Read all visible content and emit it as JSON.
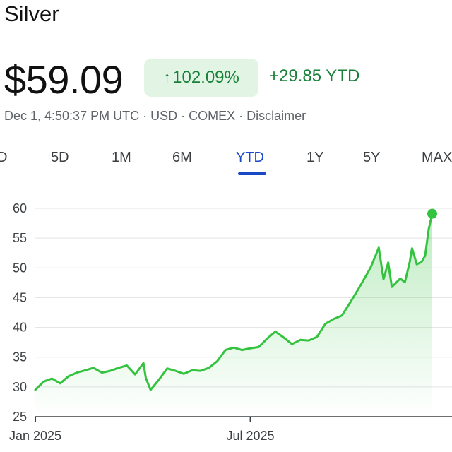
{
  "header": {
    "title": "Silver"
  },
  "quote": {
    "price": "$59.09",
    "change_arrow": "↑",
    "change_percent": "102.09%",
    "change_abs": "+29.85 YTD",
    "meta": "Dec 1, 4:50:37 PM UTC · USD · COMEX · Disclaimer"
  },
  "range_tabs": {
    "items": [
      "D",
      "5D",
      "1M",
      "6M",
      "YTD",
      "1Y",
      "5Y",
      "MAX"
    ],
    "selected": "YTD"
  },
  "colors": {
    "line": "#34c33f",
    "positive": "#188038",
    "accent": "#1a49c6"
  },
  "chart_data": {
    "type": "area",
    "title": "",
    "xlabel": "",
    "ylabel": "",
    "ylim": [
      25,
      60
    ],
    "y_ticks": [
      25,
      30,
      35,
      40,
      45,
      50,
      55,
      60
    ],
    "x_ticks": [
      "Jan 2025",
      "Jul 2025"
    ],
    "x_range": [
      "2025-01-01",
      "2025-12-01"
    ],
    "grid": true,
    "series": [
      {
        "values": [
          [
            "2025-01-01",
            29.5
          ],
          [
            "2025-01-08",
            30.9
          ],
          [
            "2025-01-15",
            31.4
          ],
          [
            "2025-01-22",
            30.6
          ],
          [
            "2025-01-29",
            31.8
          ],
          [
            "2025-02-05",
            32.4
          ],
          [
            "2025-02-12",
            32.8
          ],
          [
            "2025-02-19",
            33.2
          ],
          [
            "2025-02-26",
            32.4
          ],
          [
            "2025-03-05",
            32.7
          ],
          [
            "2025-03-12",
            33.2
          ],
          [
            "2025-03-19",
            33.6
          ],
          [
            "2025-03-26",
            32.1
          ],
          [
            "2025-04-02",
            34.0
          ],
          [
            "2025-04-04",
            31.5
          ],
          [
            "2025-04-08",
            29.5
          ],
          [
            "2025-04-15",
            31.2
          ],
          [
            "2025-04-22",
            33.1
          ],
          [
            "2025-04-29",
            32.7
          ],
          [
            "2025-05-06",
            32.2
          ],
          [
            "2025-05-13",
            32.8
          ],
          [
            "2025-05-20",
            32.7
          ],
          [
            "2025-05-27",
            33.2
          ],
          [
            "2025-06-03",
            34.3
          ],
          [
            "2025-06-10",
            36.2
          ],
          [
            "2025-06-17",
            36.6
          ],
          [
            "2025-06-24",
            36.2
          ],
          [
            "2025-07-01",
            36.5
          ],
          [
            "2025-07-08",
            36.7
          ],
          [
            "2025-07-15",
            38.1
          ],
          [
            "2025-07-22",
            39.3
          ],
          [
            "2025-07-29",
            38.3
          ],
          [
            "2025-08-05",
            37.2
          ],
          [
            "2025-08-12",
            37.9
          ],
          [
            "2025-08-19",
            37.8
          ],
          [
            "2025-08-26",
            38.4
          ],
          [
            "2025-09-02",
            40.6
          ],
          [
            "2025-09-09",
            41.4
          ],
          [
            "2025-09-16",
            42.0
          ],
          [
            "2025-09-23",
            44.2
          ],
          [
            "2025-09-30",
            46.5
          ],
          [
            "2025-10-06",
            48.6
          ],
          [
            "2025-10-10",
            50.0
          ],
          [
            "2025-10-14",
            51.9
          ],
          [
            "2025-10-17",
            53.4
          ],
          [
            "2025-10-21",
            48.1
          ],
          [
            "2025-10-25",
            50.9
          ],
          [
            "2025-10-28",
            46.8
          ],
          [
            "2025-11-04",
            48.2
          ],
          [
            "2025-11-08",
            47.6
          ],
          [
            "2025-11-12",
            50.9
          ],
          [
            "2025-11-14",
            53.3
          ],
          [
            "2025-11-18",
            50.6
          ],
          [
            "2025-11-22",
            51.0
          ],
          [
            "2025-11-25",
            52.0
          ],
          [
            "2025-11-28",
            56.5
          ],
          [
            "2025-12-01",
            59.09
          ]
        ]
      }
    ]
  }
}
